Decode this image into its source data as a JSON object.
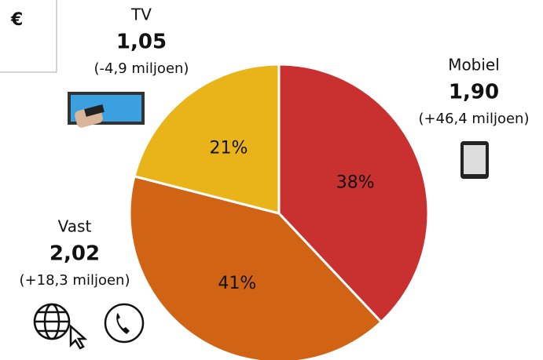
{
  "chart_data": {
    "type": "pie",
    "categories": [
      "Mobiel",
      "Vast",
      "TV"
    ],
    "values": [
      38,
      41,
      21
    ],
    "value_labels": [
      "38%",
      "41%",
      "21%"
    ],
    "colors": [
      "#c8312f",
      "#d06414",
      "#e8b41a"
    ],
    "annotations": [
      {
        "amount": "1,90",
        "change": "(+46,4 miljoen)"
      },
      {
        "amount": "2,02",
        "change": "(+18,3 miljoen)"
      },
      {
        "amount": "1,05",
        "change": "(-4,9 miljoen)"
      }
    ],
    "box_text": "€"
  }
}
